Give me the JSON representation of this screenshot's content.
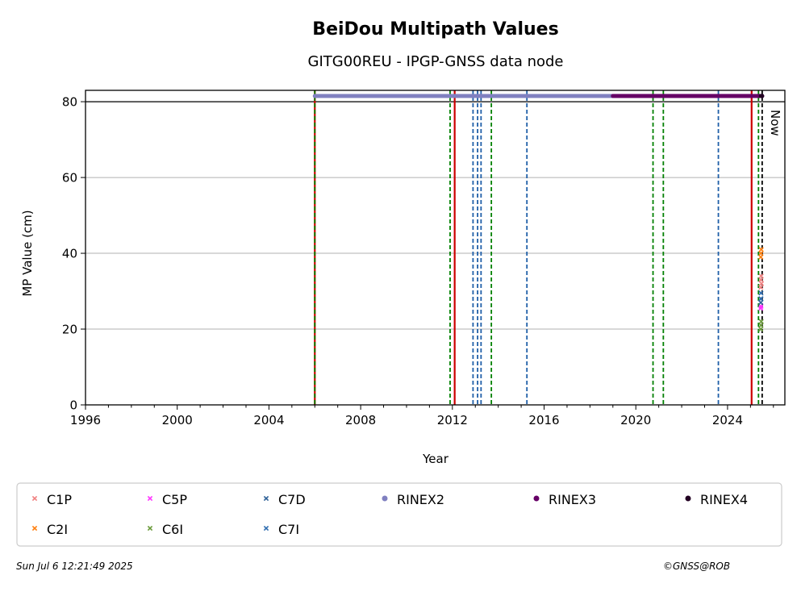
{
  "chart_data": {
    "type": "scatter",
    "title": "BeiDou Multipath Values",
    "subtitle": "GITG00REU - IPGP-GNSS data node",
    "xlabel": "Year",
    "ylabel": "MP Value (cm)",
    "xlim": [
      1996,
      2026.5
    ],
    "ylim": [
      0,
      83
    ],
    "xticks": [
      "1996",
      "2000",
      "2004",
      "2008",
      "2012",
      "2016",
      "2020",
      "2024"
    ],
    "yticks": [
      "0",
      "20",
      "40",
      "60",
      "80"
    ],
    "grid": "horizontal",
    "reference_line_y": 80,
    "now_label": "Now",
    "now_x": 2025.51,
    "series": [
      {
        "name": "C1P",
        "marker": "x",
        "color": "#f08080",
        "points": [
          [
            2025.45,
            31
          ],
          [
            2025.46,
            33
          ],
          [
            2025.47,
            34
          ],
          [
            2025.48,
            32
          ]
        ]
      },
      {
        "name": "C2I",
        "marker": "x",
        "color": "#ff7f0e",
        "points": [
          [
            2025.45,
            39
          ],
          [
            2025.46,
            40
          ],
          [
            2025.47,
            41
          ]
        ]
      },
      {
        "name": "C5P",
        "marker": "x",
        "color": "#ff33ff",
        "points": [
          [
            2025.45,
            25.5
          ],
          [
            2025.46,
            26
          ]
        ]
      },
      {
        "name": "C6I",
        "marker": "x",
        "color": "#6a9a3a",
        "points": [
          [
            2025.45,
            20
          ],
          [
            2025.46,
            21
          ],
          [
            2025.47,
            22
          ]
        ]
      },
      {
        "name": "C7D",
        "marker": "x",
        "color": "#2c5f96",
        "points": [
          [
            2025.45,
            27
          ],
          [
            2025.46,
            28
          ]
        ]
      },
      {
        "name": "C7I",
        "marker": "x",
        "color": "#2f6db0",
        "points": [
          [
            2025.45,
            28
          ],
          [
            2025.46,
            29.5
          ]
        ]
      }
    ],
    "availability": [
      {
        "name": "RINEX2",
        "color": "#8080c0",
        "start": 2006.0,
        "end": 2025.51,
        "y": 81.5
      },
      {
        "name": "RINEX3",
        "color": "#660066",
        "start": 2019.0,
        "end": 2025.51,
        "y": 81.5
      },
      {
        "name": "RINEX4",
        "color": "#220022",
        "start": 2025.45,
        "end": 2025.51,
        "y": 81.5
      }
    ],
    "event_lines": [
      {
        "x": 2006.0,
        "color": "#cc0000",
        "style": "solid"
      },
      {
        "x": 2006.0,
        "color": "#008000",
        "style": "dashed"
      },
      {
        "x": 2011.9,
        "color": "#008000",
        "style": "dashed"
      },
      {
        "x": 2012.1,
        "color": "#cc0000",
        "style": "solid"
      },
      {
        "x": 2012.9,
        "color": "#1f5fa8",
        "style": "dashed"
      },
      {
        "x": 2013.1,
        "color": "#1f5fa8",
        "style": "dashed"
      },
      {
        "x": 2013.25,
        "color": "#1f5fa8",
        "style": "dashed"
      },
      {
        "x": 2013.7,
        "color": "#008000",
        "style": "dashed"
      },
      {
        "x": 2015.25,
        "color": "#1f5fa8",
        "style": "dashed"
      },
      {
        "x": 2020.75,
        "color": "#008000",
        "style": "dashed"
      },
      {
        "x": 2021.2,
        "color": "#008000",
        "style": "dashed"
      },
      {
        "x": 2023.6,
        "color": "#1f5fa8",
        "style": "dashed"
      },
      {
        "x": 2025.05,
        "color": "#cc0000",
        "style": "solid"
      },
      {
        "x": 2025.35,
        "color": "#008000",
        "style": "dashed"
      },
      {
        "x": 2025.51,
        "color": "#000000",
        "style": "dashed"
      }
    ],
    "legend": {
      "placement": "bottom",
      "items": [
        {
          "label": "C1P",
          "marker": "x",
          "color": "#f08080"
        },
        {
          "label": "C5P",
          "marker": "x",
          "color": "#ff33ff"
        },
        {
          "label": "C7D",
          "marker": "x",
          "color": "#2c5f96"
        },
        {
          "label": "RINEX2",
          "marker": "dot",
          "color": "#8080c0"
        },
        {
          "label": "RINEX3",
          "marker": "dot",
          "color": "#660066"
        },
        {
          "label": "RINEX4",
          "marker": "dot",
          "color": "#220022"
        },
        {
          "label": "C2I",
          "marker": "x",
          "color": "#ff7f0e"
        },
        {
          "label": "C6I",
          "marker": "x",
          "color": "#6a9a3a"
        },
        {
          "label": "C7I",
          "marker": "x",
          "color": "#2f6db0"
        }
      ]
    }
  },
  "footer": {
    "timestamp": "Sun Jul  6 12:21:49 2025",
    "credit": "©GNSS@ROB"
  }
}
